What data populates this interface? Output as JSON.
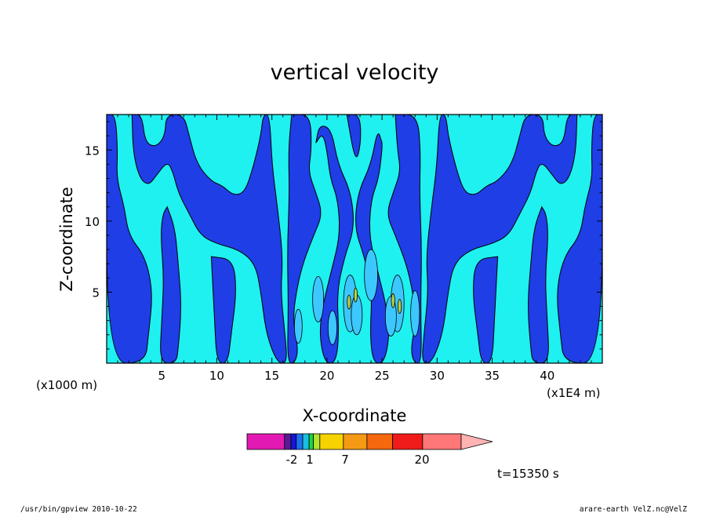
{
  "chart_data": {
    "type": "heatmap",
    "title": "vertical velocity",
    "xlabel": "X-coordinate",
    "ylabel": "Z-coordinate",
    "x_unit_left": "(x1000 m)",
    "x_unit_right": "(x1E4 m)",
    "xlim": [
      0,
      45
    ],
    "ylim": [
      0,
      17.5
    ],
    "xticks": [
      5,
      10,
      15,
      20,
      25,
      30,
      35,
      40
    ],
    "yticks": [
      5,
      10,
      15
    ],
    "colorbar": {
      "levels": [
        -2,
        1,
        7,
        20
      ],
      "level_labels": [
        "-2",
        "1",
        "7",
        "20"
      ],
      "colors": [
        "#e319b4",
        "#5a1a96",
        "#1515d8",
        "#1e6ff0",
        "#18bfe0",
        "#19d646",
        "#b3e32c",
        "#f5d200",
        "#f59a14",
        "#f5680e",
        "#f01b1b",
        "#ff7777",
        "#ffb3b3"
      ]
    },
    "field_colors": {
      "negative": "#1f3ee6",
      "weak_positive": "#1ff0f0",
      "positive": "#3cc8ff",
      "strong": "#b8d040"
    },
    "time_label": "t=15350 s"
  },
  "footer": {
    "left": "/usr/bin/gpview   2010-10-22",
    "right": "arare-earth_VelZ.nc@VelZ"
  }
}
